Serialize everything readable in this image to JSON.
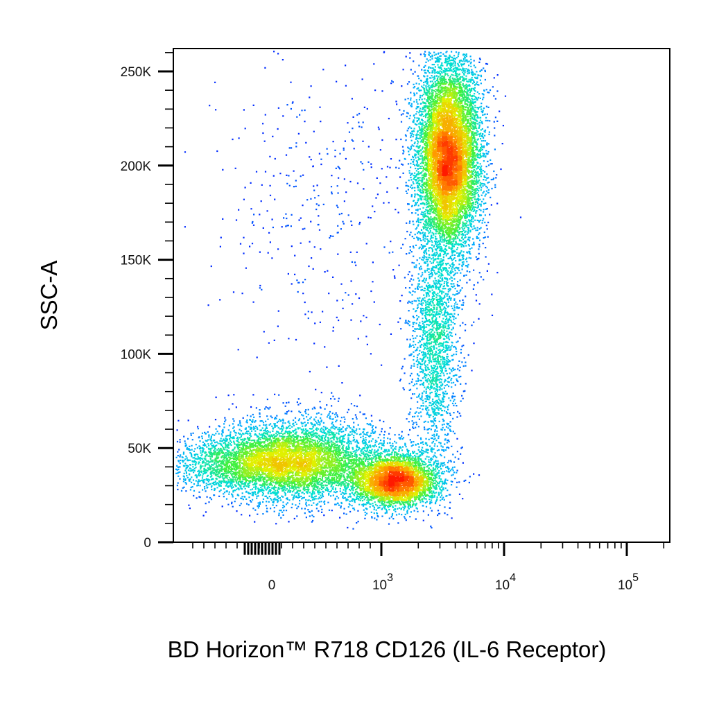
{
  "chart_data": {
    "type": "scatter",
    "subtype": "flow-cytometry density dot plot",
    "xlabel": "BD Horizon™ R718 CD126 (IL-6 Receptor)",
    "ylabel": "SSC-A",
    "x_scale": "biexponential",
    "y_scale": "linear",
    "xlim": [
      -400,
      200000
    ],
    "ylim": [
      0,
      262144
    ],
    "grid": false,
    "legend": "none",
    "x_ticks": [
      {
        "value": 0,
        "base": "0",
        "exp": ""
      },
      {
        "value": 1000,
        "base": "10",
        "exp": "3"
      },
      {
        "value": 10000,
        "base": "10",
        "exp": "4"
      },
      {
        "value": 100000,
        "base": "10",
        "exp": "5"
      }
    ],
    "y_ticks": [
      {
        "value": 0,
        "label": "0"
      },
      {
        "value": 50000,
        "label": "50K"
      },
      {
        "value": 100000,
        "label": "100K"
      },
      {
        "value": 150000,
        "label": "150K"
      },
      {
        "value": 200000,
        "label": "200K"
      },
      {
        "value": 250000,
        "label": "250K"
      }
    ],
    "density_colors": [
      "#0000ff",
      "#00aaff",
      "#00e0d0",
      "#40f040",
      "#e0f000",
      "#ff9900",
      "#ff1a00"
    ],
    "populations": [
      {
        "name": "",
        "x_center": 3500,
        "y_center": 205000,
        "x_spread_decades": 0.13,
        "y_spread": 26000,
        "events": 9000
      },
      {
        "name": "",
        "x_center": 30,
        "y_center": 42000,
        "x_spread_decades": 0.4,
        "y_spread": 9000,
        "events": 4200
      },
      {
        "name": "",
        "x_center": 1300,
        "y_center": 33000,
        "x_spread_decades": 0.18,
        "y_spread": 7000,
        "events": 3800
      },
      {
        "name": "",
        "x_center": 2700,
        "y_center": 105000,
        "x_spread_decades": 0.1,
        "y_spread": 30000,
        "events": 1800
      },
      {
        "name": "",
        "x_center": 300,
        "y_center": 45000,
        "x_spread_decades": 0.35,
        "y_spread": 12000,
        "events": 2600
      },
      {
        "name": "",
        "x_center": 500,
        "y_center": 180000,
        "x_spread_decades": 0.5,
        "y_spread": 40000,
        "events": 380
      }
    ]
  }
}
